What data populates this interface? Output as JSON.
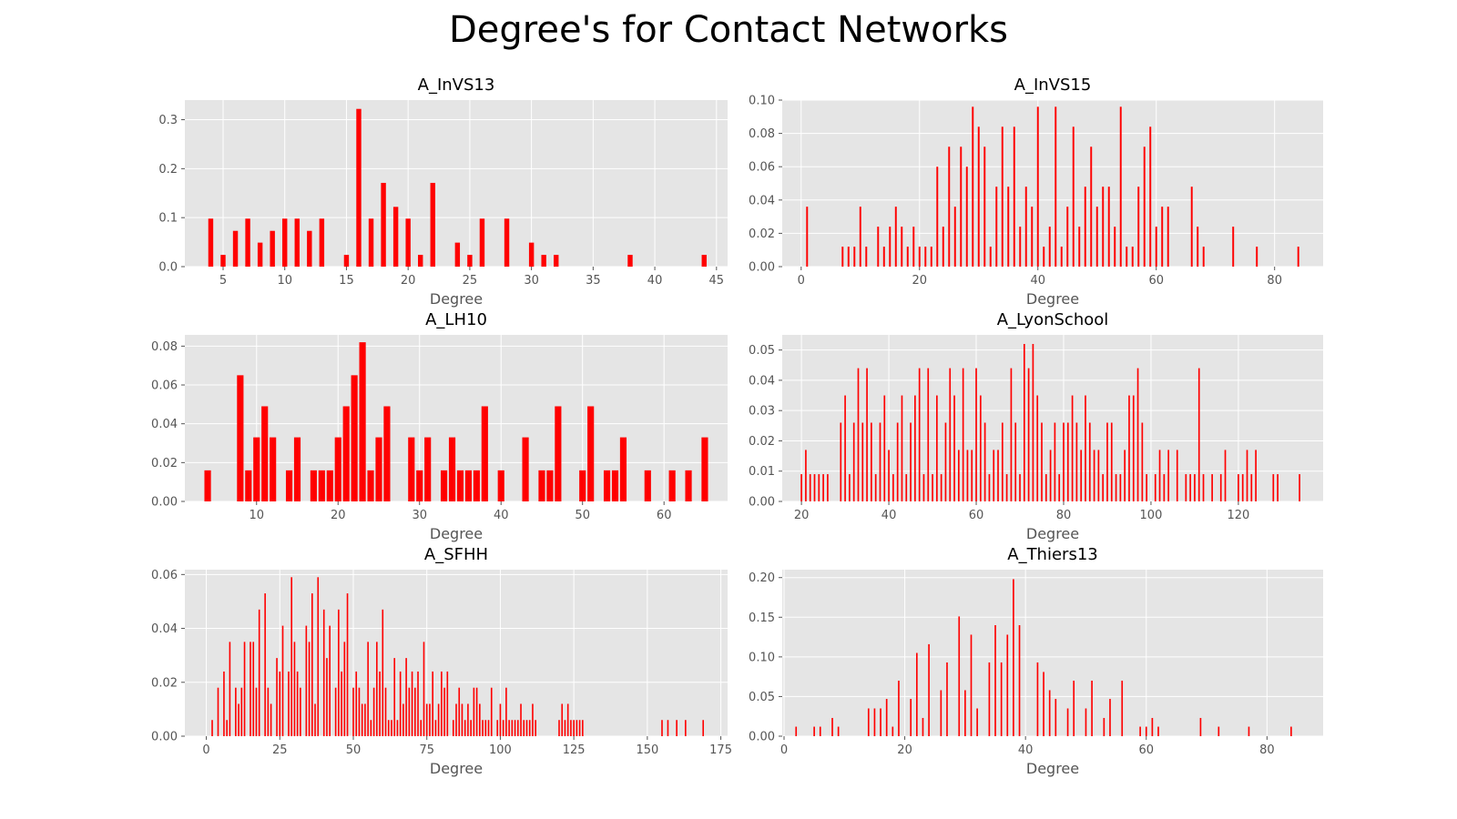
{
  "figure": {
    "title": "Degree's for Contact Networks"
  },
  "chart_data": [
    {
      "type": "bar",
      "title": "A_InVS13",
      "xlabel": "Degree",
      "ylabel": "",
      "xlim": [
        1.9,
        45.9
      ],
      "ylim": [
        0,
        0.34
      ],
      "xticks": [
        5,
        10,
        15,
        20,
        25,
        30,
        35,
        40,
        45
      ],
      "yticks": [
        0.0,
        0.1,
        0.2,
        0.3
      ],
      "ytick_decimals": 1,
      "bar_width": 0.4,
      "color": "#ff0000",
      "grid": true,
      "x": [
        4,
        5,
        6,
        7,
        8,
        9,
        10,
        11,
        12,
        13,
        15,
        16,
        17,
        18,
        19,
        20,
        21,
        22,
        24,
        25,
        26,
        28,
        30,
        31,
        32,
        38,
        44
      ],
      "values": [
        0.098,
        0.024,
        0.073,
        0.098,
        0.049,
        0.073,
        0.098,
        0.098,
        0.073,
        0.098,
        0.024,
        0.322,
        0.098,
        0.171,
        0.122,
        0.098,
        0.024,
        0.171,
        0.049,
        0.024,
        0.098,
        0.098,
        0.049,
        0.024,
        0.024,
        0.024,
        0.024
      ]
    },
    {
      "type": "bar",
      "title": "A_InVS15",
      "xlabel": "Degree",
      "ylabel": "",
      "xlim": [
        -3.2,
        88.2
      ],
      "ylim": [
        0,
        0.1
      ],
      "xticks": [
        0,
        20,
        40,
        60,
        80
      ],
      "yticks": [
        0.0,
        0.02,
        0.04,
        0.06,
        0.08,
        0.1
      ],
      "ytick_decimals": 2,
      "bar_width": 0.3,
      "color": "#ff0000",
      "grid": true,
      "x": [
        1,
        7,
        8,
        9,
        10,
        11,
        13,
        14,
        15,
        16,
        17,
        18,
        19,
        20,
        21,
        22,
        23,
        24,
        25,
        26,
        27,
        28,
        29,
        30,
        31,
        32,
        33,
        34,
        35,
        36,
        37,
        38,
        39,
        40,
        41,
        42,
        43,
        44,
        45,
        46,
        47,
        48,
        49,
        50,
        51,
        52,
        53,
        54,
        55,
        56,
        57,
        58,
        59,
        60,
        61,
        62,
        66,
        67,
        68,
        73,
        77,
        84
      ],
      "values": [
        0.036,
        0.012,
        0.012,
        0.012,
        0.036,
        0.012,
        0.024,
        0.012,
        0.024,
        0.036,
        0.024,
        0.012,
        0.024,
        0.012,
        0.012,
        0.012,
        0.06,
        0.024,
        0.072,
        0.036,
        0.072,
        0.06,
        0.096,
        0.084,
        0.072,
        0.012,
        0.048,
        0.084,
        0.048,
        0.084,
        0.024,
        0.048,
        0.036,
        0.096,
        0.012,
        0.024,
        0.096,
        0.012,
        0.036,
        0.084,
        0.024,
        0.048,
        0.072,
        0.036,
        0.048,
        0.048,
        0.024,
        0.096,
        0.012,
        0.012,
        0.048,
        0.072,
        0.084,
        0.024,
        0.036,
        0.036,
        0.048,
        0.024,
        0.012,
        0.024,
        0.012,
        0.012
      ]
    },
    {
      "type": "bar",
      "title": "A_LH10",
      "xlabel": "Degree",
      "ylabel": "",
      "xlim": [
        1.2,
        67.8
      ],
      "ylim": [
        0,
        0.0858
      ],
      "xticks": [
        10,
        20,
        30,
        40,
        50,
        60
      ],
      "yticks": [
        0.0,
        0.02,
        0.04,
        0.06,
        0.08
      ],
      "ytick_decimals": 2,
      "bar_width": 0.8,
      "color": "#ff0000",
      "grid": true,
      "x": [
        4,
        8,
        9,
        10,
        11,
        12,
        14,
        15,
        17,
        18,
        19,
        20,
        21,
        22,
        23,
        24,
        25,
        26,
        29,
        30,
        31,
        33,
        34,
        35,
        36,
        37,
        38,
        40,
        43,
        45,
        46,
        47,
        50,
        51,
        53,
        54,
        55,
        58,
        61,
        63,
        65
      ],
      "values": [
        0.016,
        0.065,
        0.016,
        0.033,
        0.049,
        0.033,
        0.016,
        0.033,
        0.016,
        0.016,
        0.016,
        0.033,
        0.049,
        0.065,
        0.082,
        0.016,
        0.033,
        0.049,
        0.033,
        0.016,
        0.033,
        0.016,
        0.033,
        0.016,
        0.016,
        0.016,
        0.049,
        0.016,
        0.033,
        0.016,
        0.016,
        0.049,
        0.016,
        0.049,
        0.016,
        0.016,
        0.033,
        0.016,
        0.016,
        0.016,
        0.033
      ]
    },
    {
      "type": "bar",
      "title": "A_LyonSchool",
      "xlabel": "Degree",
      "ylabel": "",
      "xlim": [
        15.6,
        139.4
      ],
      "ylim": [
        0,
        0.055
      ],
      "xticks": [
        20,
        40,
        60,
        80,
        100,
        120
      ],
      "yticks": [
        0.0,
        0.01,
        0.02,
        0.03,
        0.04,
        0.05
      ],
      "ytick_decimals": 2,
      "bar_width": 0.35,
      "color": "#ff0000",
      "grid": true,
      "x": [
        20,
        21,
        22,
        23,
        24,
        25,
        26,
        29,
        30,
        31,
        32,
        33,
        34,
        35,
        36,
        37,
        38,
        39,
        40,
        41,
        42,
        43,
        44,
        45,
        46,
        47,
        48,
        49,
        50,
        51,
        52,
        53,
        54,
        55,
        56,
        57,
        58,
        59,
        60,
        61,
        62,
        63,
        64,
        65,
        66,
        67,
        68,
        69,
        70,
        71,
        72,
        73,
        74,
        75,
        76,
        77,
        78,
        79,
        80,
        81,
        82,
        83,
        84,
        85,
        86,
        87,
        88,
        89,
        90,
        91,
        92,
        93,
        94,
        95,
        96,
        97,
        98,
        99,
        101,
        102,
        103,
        104,
        106,
        108,
        109,
        110,
        111,
        112,
        114,
        116,
        117,
        120,
        121,
        122,
        123,
        124,
        128,
        129,
        134
      ],
      "values": [
        0.009,
        0.017,
        0.009,
        0.009,
        0.009,
        0.009,
        0.009,
        0.026,
        0.035,
        0.009,
        0.026,
        0.044,
        0.026,
        0.044,
        0.026,
        0.009,
        0.026,
        0.035,
        0.017,
        0.009,
        0.026,
        0.035,
        0.009,
        0.026,
        0.035,
        0.044,
        0.009,
        0.044,
        0.009,
        0.035,
        0.009,
        0.026,
        0.044,
        0.035,
        0.017,
        0.044,
        0.017,
        0.017,
        0.044,
        0.035,
        0.026,
        0.009,
        0.017,
        0.017,
        0.026,
        0.009,
        0.044,
        0.026,
        0.009,
        0.052,
        0.044,
        0.052,
        0.035,
        0.026,
        0.009,
        0.017,
        0.026,
        0.009,
        0.026,
        0.026,
        0.035,
        0.026,
        0.017,
        0.035,
        0.026,
        0.017,
        0.017,
        0.009,
        0.026,
        0.026,
        0.009,
        0.009,
        0.017,
        0.035,
        0.035,
        0.044,
        0.026,
        0.009,
        0.009,
        0.017,
        0.009,
        0.017,
        0.017,
        0.009,
        0.009,
        0.009,
        0.044,
        0.009,
        0.009,
        0.009,
        0.017,
        0.009,
        0.009,
        0.017,
        0.009,
        0.017,
        0.009,
        0.009,
        0.009
      ]
    },
    {
      "type": "bar",
      "title": "A_SFHH",
      "xlabel": "Degree",
      "ylabel": "",
      "xlim": [
        -7.3,
        177.3
      ],
      "ylim": [
        0,
        0.0618
      ],
      "xticks": [
        0,
        25,
        50,
        75,
        100,
        125,
        150,
        175
      ],
      "yticks": [
        0.0,
        0.02,
        0.04,
        0.06
      ],
      "ytick_decimals": 2,
      "bar_width": 0.5,
      "color": "#ff0000",
      "grid": true,
      "note_x_values": "faint bars are lighter-drawn adjacent bars in the original rendering",
      "x": [
        2,
        4,
        6,
        7,
        8,
        10,
        11,
        12,
        13,
        15,
        16,
        17,
        18,
        20,
        21,
        22,
        24,
        25,
        26,
        28,
        29,
        30,
        31,
        32,
        34,
        35,
        36,
        37,
        38,
        40,
        41,
        42,
        44,
        45,
        46,
        47,
        48,
        50,
        51,
        52,
        53,
        54,
        55,
        56,
        57,
        58,
        59,
        60,
        61,
        62,
        63,
        64,
        65,
        66,
        67,
        68,
        69,
        70,
        71,
        72,
        73,
        74,
        75,
        76,
        77,
        78,
        79,
        80,
        81,
        82,
        84,
        85,
        86,
        87,
        88,
        89,
        90,
        91,
        92,
        93,
        94,
        95,
        96,
        97,
        99,
        100,
        101,
        102,
        103,
        104,
        105,
        106,
        107,
        108,
        109,
        110,
        111,
        112,
        120,
        121,
        122,
        123,
        124,
        125,
        126,
        127,
        128,
        155,
        157,
        160,
        163,
        169
      ],
      "values": [
        0.006,
        0.018,
        0.024,
        0.006,
        0.035,
        0.018,
        0.012,
        0.018,
        0.035,
        0.035,
        0.035,
        0.018,
        0.047,
        0.053,
        0.018,
        0.012,
        0.029,
        0.024,
        0.041,
        0.024,
        0.059,
        0.035,
        0.024,
        0.018,
        0.041,
        0.035,
        0.053,
        0.012,
        0.059,
        0.047,
        0.029,
        0.041,
        0.018,
        0.047,
        0.024,
        0.035,
        0.053,
        0.018,
        0.024,
        0.018,
        0.012,
        0.012,
        0.035,
        0.006,
        0.018,
        0.035,
        0.024,
        0.047,
        0.018,
        0.006,
        0.006,
        0.029,
        0.006,
        0.024,
        0.012,
        0.029,
        0.018,
        0.024,
        0.018,
        0.024,
        0.006,
        0.035,
        0.012,
        0.012,
        0.024,
        0.006,
        0.012,
        0.024,
        0.018,
        0.024,
        0.006,
        0.012,
        0.018,
        0.012,
        0.006,
        0.012,
        0.006,
        0.018,
        0.018,
        0.012,
        0.006,
        0.006,
        0.006,
        0.018,
        0.006,
        0.012,
        0.006,
        0.018,
        0.006,
        0.006,
        0.006,
        0.006,
        0.012,
        0.006,
        0.006,
        0.006,
        0.012,
        0.006,
        0.006,
        0.012,
        0.006,
        0.012,
        0.006,
        0.006,
        0.006,
        0.006,
        0.006,
        0.006,
        0.006,
        0.006,
        0.006,
        0.006
      ]
    },
    {
      "type": "bar",
      "title": "A_Thiers13",
      "xlabel": "Degree",
      "ylabel": "",
      "xlim": [
        -0.3,
        89.3
      ],
      "ylim": [
        0,
        0.21
      ],
      "xticks": [
        0,
        20,
        40,
        60,
        80
      ],
      "yticks": [
        0.0,
        0.05,
        0.1,
        0.15,
        0.2
      ],
      "ytick_decimals": 2,
      "bar_width": 0.25,
      "color": "#ff0000",
      "grid": true,
      "x": [
        2,
        5,
        6,
        8,
        9,
        14,
        15,
        16,
        17,
        18,
        19,
        21,
        22,
        23,
        24,
        26,
        27,
        29,
        30,
        31,
        32,
        34,
        35,
        36,
        37,
        38,
        39,
        42,
        43,
        44,
        45,
        47,
        48,
        50,
        51,
        53,
        54,
        56,
        59,
        60,
        61,
        62,
        69,
        72,
        77,
        84
      ],
      "values": [
        0.012,
        0.012,
        0.012,
        0.023,
        0.012,
        0.035,
        0.035,
        0.035,
        0.047,
        0.012,
        0.07,
        0.047,
        0.105,
        0.023,
        0.116,
        0.058,
        0.093,
        0.151,
        0.058,
        0.128,
        0.035,
        0.093,
        0.14,
        0.093,
        0.128,
        0.198,
        0.14,
        0.093,
        0.081,
        0.058,
        0.047,
        0.035,
        0.07,
        0.035,
        0.07,
        0.023,
        0.047,
        0.07,
        0.012,
        0.012,
        0.023,
        0.012,
        0.023,
        0.012,
        0.012,
        0.012
      ]
    }
  ]
}
